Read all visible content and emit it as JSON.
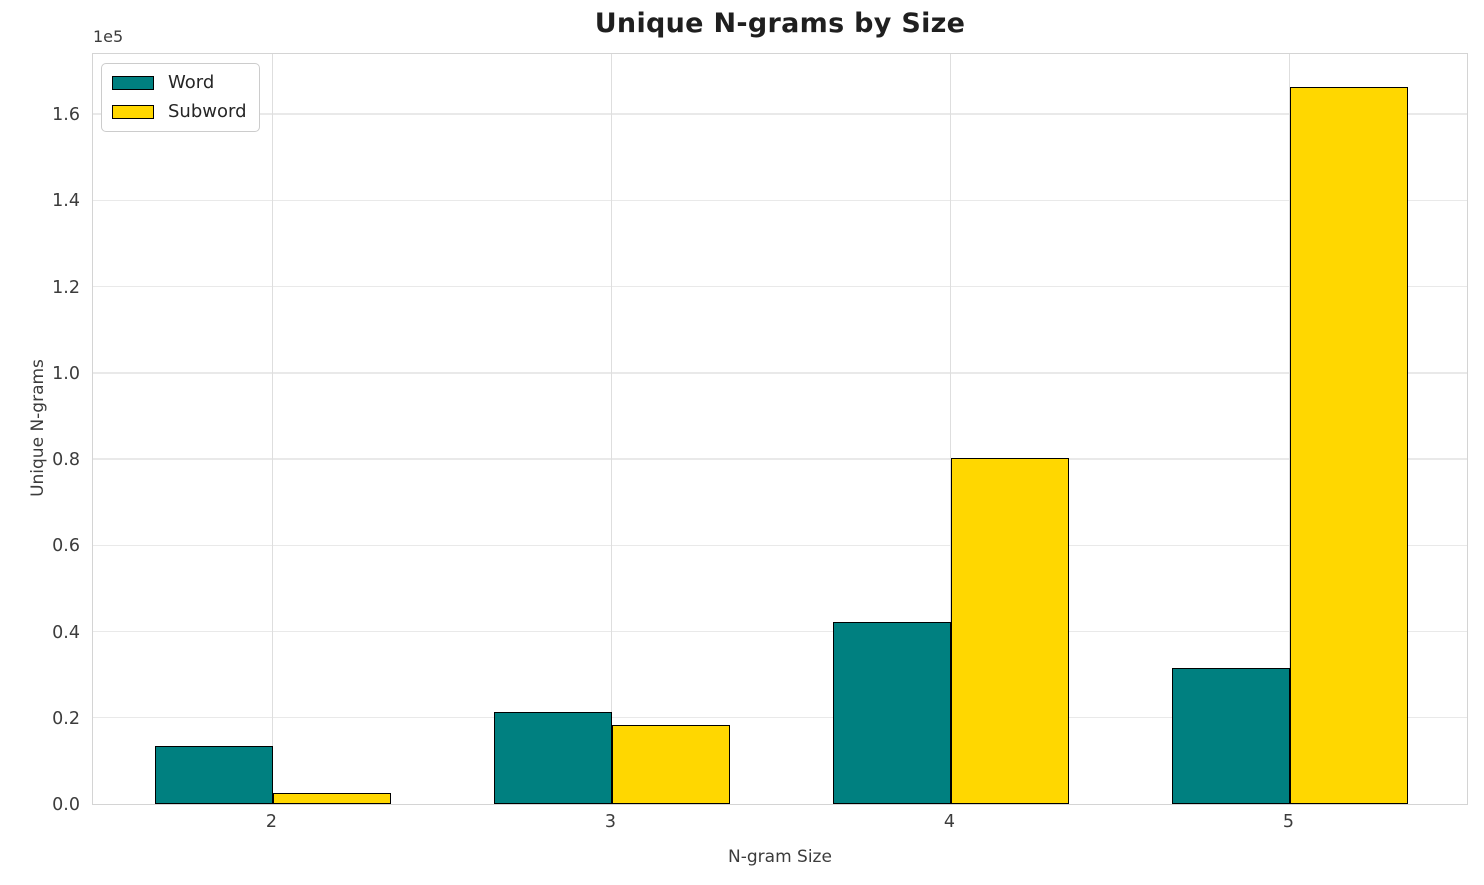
{
  "chart_data": {
    "type": "bar",
    "title": "Unique N-grams by Size",
    "xlabel": "N-gram Size",
    "ylabel": "Unique N-grams",
    "y_offset_label": "1e5",
    "categories": [
      "2",
      "3",
      "4",
      "5"
    ],
    "series": [
      {
        "name": "Word",
        "color": "#008080",
        "values": [
          13500,
          21300,
          42200,
          31500
        ]
      },
      {
        "name": "Subword",
        "color": "#FFD700",
        "values": [
          2500,
          18300,
          80200,
          166300
        ]
      }
    ],
    "bar_edge_color": "#000000",
    "y_ticks": [
      {
        "label": "0.0",
        "value": 0
      },
      {
        "label": "0.2",
        "value": 20000
      },
      {
        "label": "0.4",
        "value": 40000
      },
      {
        "label": "0.6",
        "value": 60000
      },
      {
        "label": "0.8",
        "value": 80000
      },
      {
        "label": "1.0",
        "value": 100000
      },
      {
        "label": "1.2",
        "value": 120000
      },
      {
        "label": "1.4",
        "value": 140000
      },
      {
        "label": "1.6",
        "value": 160000
      }
    ],
    "ylim": [
      0,
      174400
    ],
    "grid": true,
    "legend_position": "upper left"
  }
}
